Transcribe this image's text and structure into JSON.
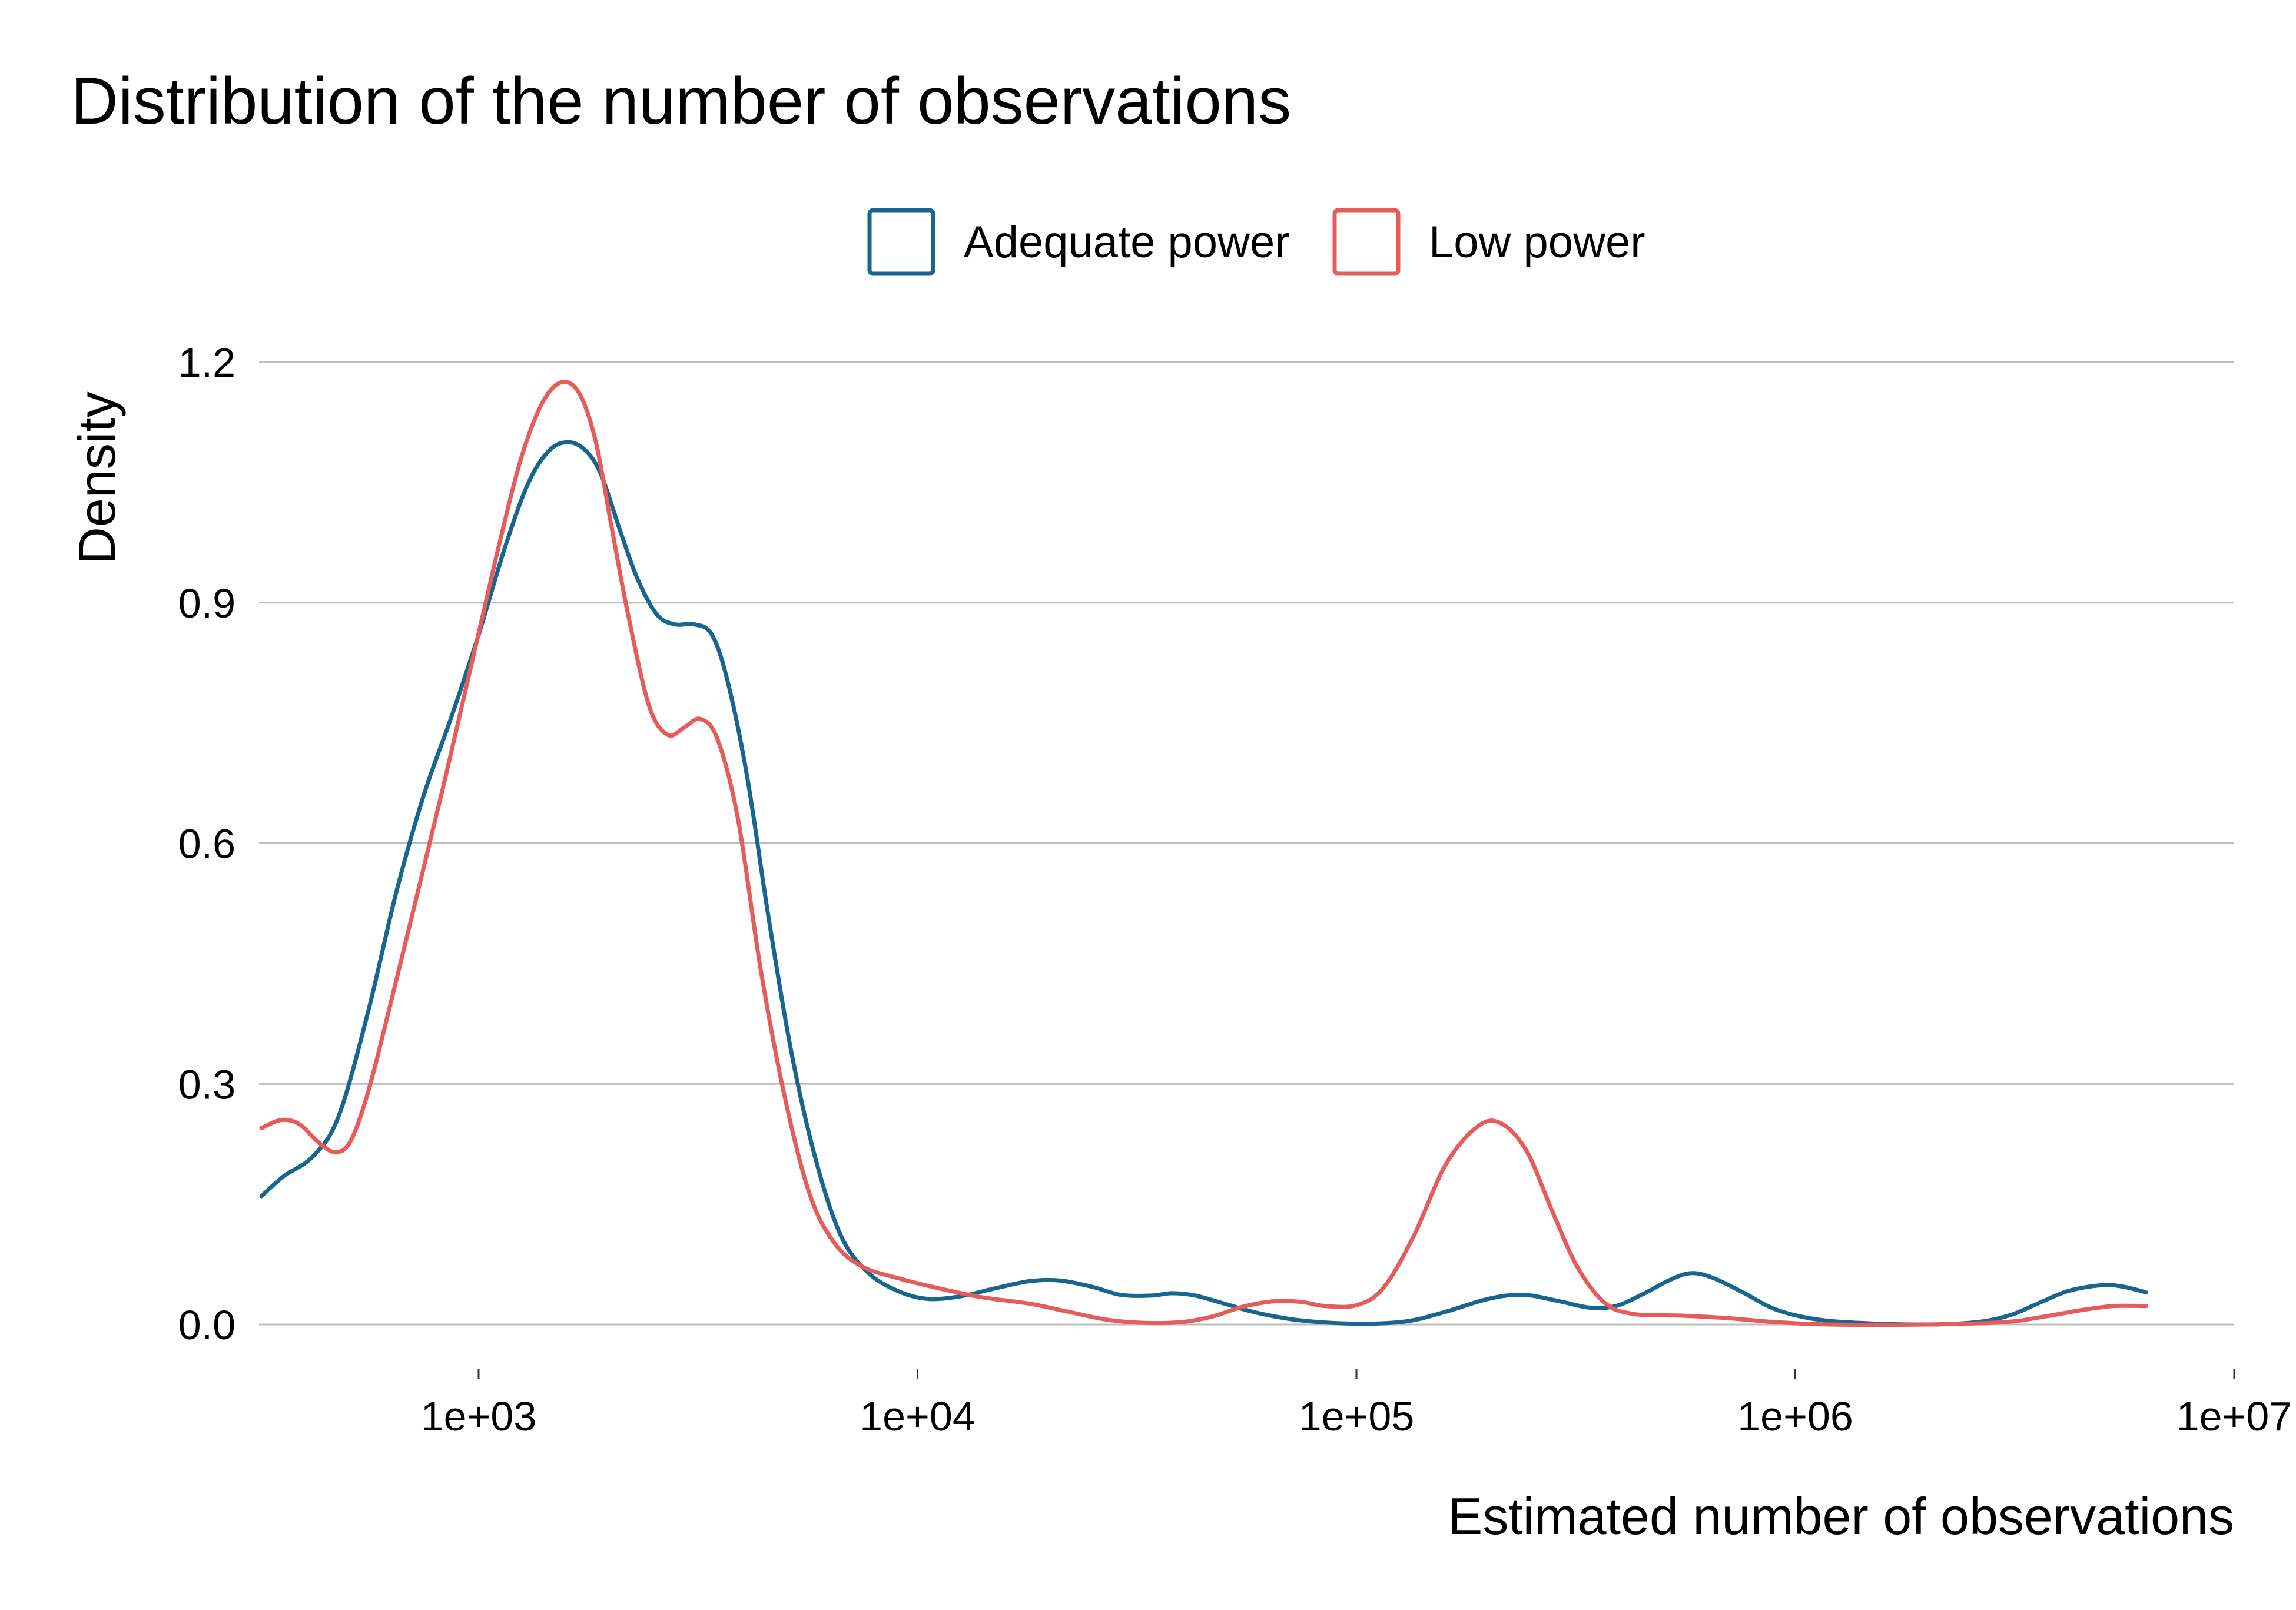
{
  "chart_data": {
    "type": "line",
    "title": "Distribution of the number of observations",
    "xlabel": "Estimated number of observations",
    "ylabel": "Density",
    "x_scale": "log10",
    "xlim": [
      316,
      10000000
    ],
    "ylim": [
      0,
      1.2
    ],
    "x_ticks": [
      {
        "value": 1000,
        "label": "1e+03"
      },
      {
        "value": 10000,
        "label": "1e+04"
      },
      {
        "value": 100000,
        "label": "1e+05"
      },
      {
        "value": 1000000,
        "label": "1e+06"
      },
      {
        "value": 10000000,
        "label": "1e+07"
      }
    ],
    "y_ticks": [
      {
        "value": 0,
        "label": "0.0"
      },
      {
        "value": 0.3,
        "label": "0.3"
      },
      {
        "value": 0.6,
        "label": "0.6"
      },
      {
        "value": 0.9,
        "label": "0.9"
      },
      {
        "value": 1.2,
        "label": "1.2"
      }
    ],
    "grid": "horizontal",
    "legend_position": "top",
    "series": [
      {
        "name": "Adequate power",
        "color": "#16668f",
        "points": [
          [
            320,
            0.16
          ],
          [
            360,
            0.185
          ],
          [
            420,
            0.21
          ],
          [
            480,
            0.26
          ],
          [
            560,
            0.39
          ],
          [
            650,
            0.54
          ],
          [
            750,
            0.66
          ],
          [
            870,
            0.76
          ],
          [
            1000,
            0.86
          ],
          [
            1150,
            0.97
          ],
          [
            1300,
            1.05
          ],
          [
            1450,
            1.09
          ],
          [
            1600,
            1.1
          ],
          [
            1750,
            1.09
          ],
          [
            1900,
            1.06
          ],
          [
            2100,
            0.99
          ],
          [
            2300,
            0.93
          ],
          [
            2550,
            0.885
          ],
          [
            2800,
            0.873
          ],
          [
            3100,
            0.873
          ],
          [
            3400,
            0.86
          ],
          [
            3700,
            0.8
          ],
          [
            4100,
            0.68
          ],
          [
            4600,
            0.5
          ],
          [
            5200,
            0.33
          ],
          [
            5900,
            0.2
          ],
          [
            6700,
            0.11
          ],
          [
            7700,
            0.065
          ],
          [
            9000,
            0.042
          ],
          [
            10500,
            0.032
          ],
          [
            12500,
            0.035
          ],
          [
            15000,
            0.045
          ],
          [
            18000,
            0.054
          ],
          [
            21000,
            0.055
          ],
          [
            25000,
            0.047
          ],
          [
            29000,
            0.037
          ],
          [
            34000,
            0.036
          ],
          [
            38000,
            0.039
          ],
          [
            43000,
            0.036
          ],
          [
            50000,
            0.026
          ],
          [
            60000,
            0.014
          ],
          [
            75000,
            0.005
          ],
          [
            100000,
            0.001
          ],
          [
            130000,
            0.004
          ],
          [
            160000,
            0.016
          ],
          [
            200000,
            0.032
          ],
          [
            240000,
            0.037
          ],
          [
            290000,
            0.029
          ],
          [
            340000,
            0.021
          ],
          [
            390000,
            0.023
          ],
          [
            450000,
            0.038
          ],
          [
            520000,
            0.056
          ],
          [
            580000,
            0.064
          ],
          [
            650000,
            0.058
          ],
          [
            760000,
            0.04
          ],
          [
            900000,
            0.019
          ],
          [
            1100000,
            0.007
          ],
          [
            1400000,
            0.002
          ],
          [
            2000000,
            0.0
          ],
          [
            2600000,
            0.003
          ],
          [
            3100000,
            0.012
          ],
          [
            3600000,
            0.027
          ],
          [
            4200000,
            0.042
          ],
          [
            5000000,
            0.049
          ],
          [
            5600000,
            0.047
          ],
          [
            6300000,
            0.04
          ]
        ]
      },
      {
        "name": "Low power",
        "color": "#e65c5a",
        "points": [
          [
            320,
            0.245
          ],
          [
            355,
            0.255
          ],
          [
            390,
            0.25
          ],
          [
            430,
            0.228
          ],
          [
            470,
            0.215
          ],
          [
            510,
            0.228
          ],
          [
            560,
            0.29
          ],
          [
            630,
            0.4
          ],
          [
            720,
            0.53
          ],
          [
            830,
            0.67
          ],
          [
            960,
            0.82
          ],
          [
            1100,
            0.96
          ],
          [
            1250,
            1.08
          ],
          [
            1400,
            1.15
          ],
          [
            1550,
            1.175
          ],
          [
            1700,
            1.16
          ],
          [
            1850,
            1.1
          ],
          [
            2000,
            1.0
          ],
          [
            2200,
            0.88
          ],
          [
            2450,
            0.77
          ],
          [
            2700,
            0.735
          ],
          [
            2950,
            0.745
          ],
          [
            3200,
            0.755
          ],
          [
            3500,
            0.73
          ],
          [
            3900,
            0.63
          ],
          [
            4400,
            0.44
          ],
          [
            5000,
            0.28
          ],
          [
            5700,
            0.16
          ],
          [
            6500,
            0.1
          ],
          [
            7500,
            0.072
          ],
          [
            9000,
            0.058
          ],
          [
            11000,
            0.046
          ],
          [
            14000,
            0.034
          ],
          [
            18000,
            0.026
          ],
          [
            22000,
            0.016
          ],
          [
            27000,
            0.006
          ],
          [
            33000,
            0.002
          ],
          [
            40000,
            0.003
          ],
          [
            47000,
            0.01
          ],
          [
            55000,
            0.022
          ],
          [
            65000,
            0.029
          ],
          [
            75000,
            0.028
          ],
          [
            85000,
            0.023
          ],
          [
            100000,
            0.024
          ],
          [
            115000,
            0.045
          ],
          [
            135000,
            0.11
          ],
          [
            160000,
            0.2
          ],
          [
            190000,
            0.248
          ],
          [
            215000,
            0.25
          ],
          [
            245000,
            0.215
          ],
          [
            280000,
            0.14
          ],
          [
            320000,
            0.07
          ],
          [
            370000,
            0.026
          ],
          [
            430000,
            0.013
          ],
          [
            550000,
            0.011
          ],
          [
            700000,
            0.008
          ],
          [
            900000,
            0.003
          ],
          [
            1200000,
            0.0
          ],
          [
            2000000,
            0.0
          ],
          [
            3000000,
            0.003
          ],
          [
            3700000,
            0.01
          ],
          [
            4500000,
            0.018
          ],
          [
            5300000,
            0.023
          ],
          [
            6300000,
            0.023
          ]
        ]
      }
    ]
  }
}
